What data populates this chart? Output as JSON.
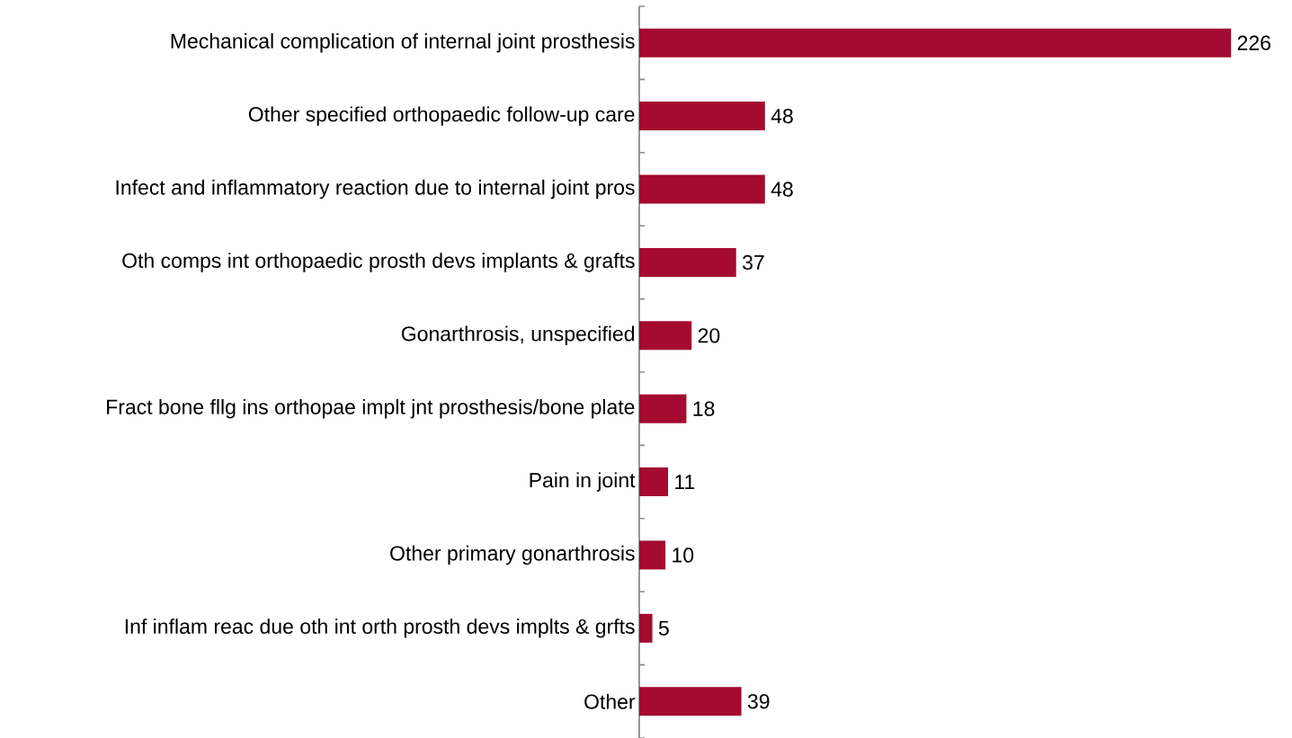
{
  "chart_data": {
    "type": "bar",
    "orientation": "horizontal",
    "categories": [
      "Mechanical complication of internal joint prosthesis",
      "Other specified orthopaedic follow-up care",
      "Infect and inflammatory reaction due to internal joint pros",
      "Oth comps int orthopaedic prosth devs implants & grafts",
      "Gonarthrosis, unspecified",
      "Fract bone fllg ins orthopae implt jnt prosthesis/bone plate",
      "Pain in joint",
      "Other primary gonarthrosis",
      "Inf inflam reac due oth int orth prosth devs implts & grfts",
      "Other"
    ],
    "values": [
      226,
      48,
      48,
      37,
      20,
      18,
      11,
      10,
      5,
      39
    ],
    "color": "#a50a30",
    "data_labels": true
  }
}
